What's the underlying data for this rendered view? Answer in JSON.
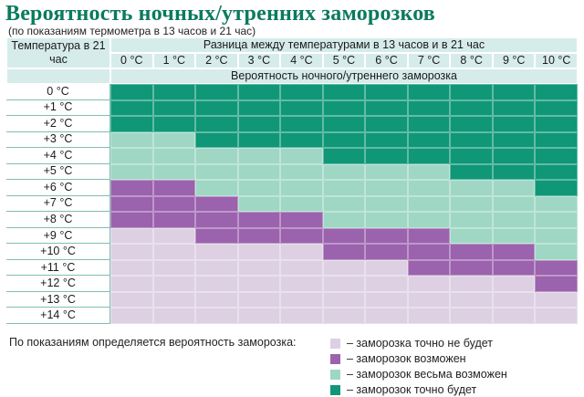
{
  "title": "Вероятность ночных/утренних заморозков",
  "subtitle": "(по показаниям термометра в 13 часов и 21 час)",
  "chart_data": {
    "type": "heatmap",
    "corner_label": "Температура в 21 час",
    "column_group_label": "Разница между температурами в 13 часов и в 21 час",
    "value_label": "Вероятность ночного/утреннего заморозка",
    "columns": [
      "0 °C",
      "1 °C",
      "2 °C",
      "3 °C",
      "4 °C",
      "5 °C",
      "6 °C",
      "7 °C",
      "8 °C",
      "9 °C",
      "10 °C"
    ],
    "rows": [
      "0 °C",
      "+1 °C",
      "+2 °C",
      "+3 °C",
      "+4 °C",
      "+5 °C",
      "+6 °C",
      "+7 °C",
      "+8 °C",
      "+9 °C",
      "+10 °C",
      "+11 °C",
      "+12 °C",
      "+13 °C",
      "+14 °C"
    ],
    "levels": [
      {
        "code": 0,
        "label": "– заморозка точно не будет",
        "color": "#ddd0e3"
      },
      {
        "code": 1,
        "label": "– заморозок возможен",
        "color": "#9b62ad"
      },
      {
        "code": 2,
        "label": "– заморозок весьма возможен",
        "color": "#9fd7c4"
      },
      {
        "code": 3,
        "label": "– заморозок точно будет",
        "color": "#0f9777"
      }
    ],
    "values": [
      [
        3,
        3,
        3,
        3,
        3,
        3,
        3,
        3,
        3,
        3,
        3
      ],
      [
        3,
        3,
        3,
        3,
        3,
        3,
        3,
        3,
        3,
        3,
        3
      ],
      [
        3,
        3,
        3,
        3,
        3,
        3,
        3,
        3,
        3,
        3,
        3
      ],
      [
        2,
        2,
        3,
        3,
        3,
        3,
        3,
        3,
        3,
        3,
        3
      ],
      [
        2,
        2,
        2,
        2,
        2,
        3,
        3,
        3,
        3,
        3,
        3
      ],
      [
        2,
        2,
        2,
        2,
        2,
        2,
        2,
        2,
        3,
        3,
        3
      ],
      [
        1,
        1,
        2,
        2,
        2,
        2,
        2,
        2,
        2,
        2,
        3
      ],
      [
        1,
        1,
        1,
        2,
        2,
        2,
        2,
        2,
        2,
        2,
        2
      ],
      [
        1,
        1,
        1,
        1,
        1,
        2,
        2,
        2,
        2,
        2,
        2
      ],
      [
        0,
        0,
        1,
        1,
        1,
        1,
        1,
        1,
        2,
        2,
        2
      ],
      [
        0,
        0,
        0,
        0,
        0,
        1,
        1,
        1,
        1,
        1,
        2
      ],
      [
        0,
        0,
        0,
        0,
        0,
        0,
        0,
        1,
        1,
        1,
        1
      ],
      [
        0,
        0,
        0,
        0,
        0,
        0,
        0,
        0,
        0,
        0,
        1
      ],
      [
        0,
        0,
        0,
        0,
        0,
        0,
        0,
        0,
        0,
        0,
        0
      ],
      [
        0,
        0,
        0,
        0,
        0,
        0,
        0,
        0,
        0,
        0,
        0
      ]
    ]
  },
  "legend": {
    "lead": "По показаниям определяется вероятность заморозка:"
  }
}
